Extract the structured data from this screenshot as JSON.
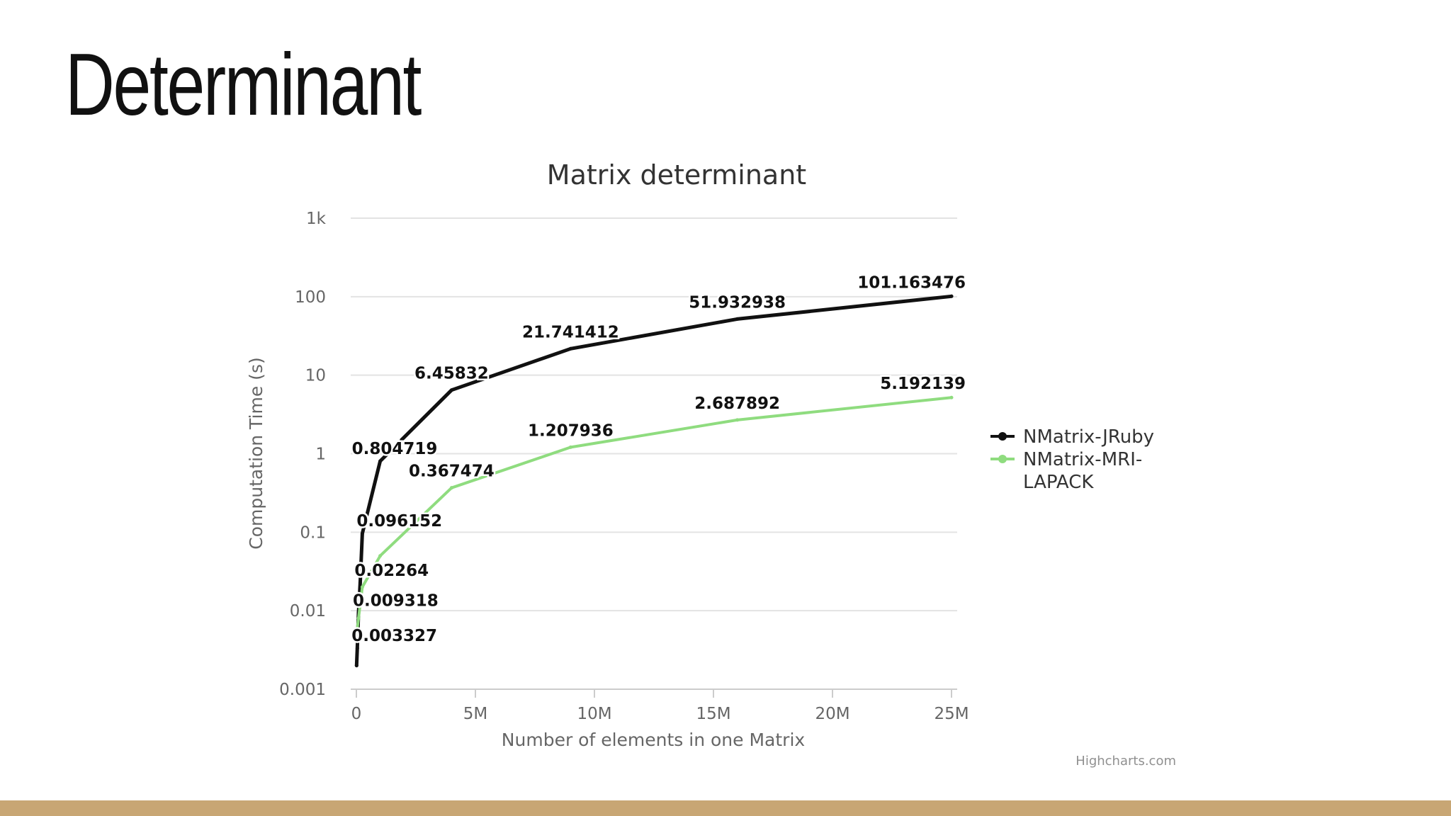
{
  "slide": {
    "title": "Determinant"
  },
  "colors": {
    "jruby": "#111111",
    "mri_lapack": "#8fdc7f",
    "accent_bar": "#c8a674",
    "grid": "#e3e3e3",
    "axis_text": "#666666"
  },
  "chart_data": {
    "type": "line",
    "title": "Matrix determinant",
    "xlabel": "Number of elements in one Matrix",
    "ylabel": "Computation Time (s)",
    "y_scale": "log",
    "xlim": [
      0,
      25000000
    ],
    "ylim": [
      0.001,
      1000
    ],
    "x_ticks": [
      {
        "value": 0,
        "label": "0"
      },
      {
        "value": 5000000,
        "label": "5M"
      },
      {
        "value": 10000000,
        "label": "10M"
      },
      {
        "value": 15000000,
        "label": "15M"
      },
      {
        "value": 20000000,
        "label": "20M"
      },
      {
        "value": 25000000,
        "label": "25M"
      }
    ],
    "y_ticks": [
      {
        "value": 0.001,
        "label": "0.001"
      },
      {
        "value": 0.01,
        "label": "0.01"
      },
      {
        "value": 0.1,
        "label": "0.1"
      },
      {
        "value": 1,
        "label": "1"
      },
      {
        "value": 10,
        "label": "10"
      },
      {
        "value": 100,
        "label": "100"
      },
      {
        "value": 1000,
        "label": "1k"
      }
    ],
    "grid": true,
    "legend_position": "right",
    "credits": "Highcharts.com",
    "series": [
      {
        "name": "NMatrix-JRuby",
        "color": "#111111",
        "points": [
          {
            "x": 10000,
            "y": 0.002,
            "label": ""
          },
          {
            "x": 40000,
            "y": 0.003327,
            "label": "0.003327"
          },
          {
            "x": 90000,
            "y": 0.009318,
            "label": "0.009318"
          },
          {
            "x": 160000,
            "y": 0.02264,
            "label": "0.02264"
          },
          {
            "x": 250000,
            "y": 0.096152,
            "label": "0.096152"
          },
          {
            "x": 1000000,
            "y": 0.804719,
            "label": "0.804719"
          },
          {
            "x": 4000000,
            "y": 6.45832,
            "label": "6.45832"
          },
          {
            "x": 9000000,
            "y": 21.741412,
            "label": "21.741412"
          },
          {
            "x": 16000000,
            "y": 51.932938,
            "label": "51.932938"
          },
          {
            "x": 25000000,
            "y": 101.163476,
            "label": "101.163476"
          }
        ]
      },
      {
        "name": "NMatrix-MRI-LAPACK",
        "color": "#8fdc7f",
        "points": [
          {
            "x": 10000,
            "y": 0.005,
            "label": ""
          },
          {
            "x": 90000,
            "y": 0.008,
            "label": ""
          },
          {
            "x": 250000,
            "y": 0.02,
            "label": ""
          },
          {
            "x": 1000000,
            "y": 0.05,
            "label": ""
          },
          {
            "x": 4000000,
            "y": 0.367474,
            "label": "0.367474"
          },
          {
            "x": 9000000,
            "y": 1.207936,
            "label": "1.207936"
          },
          {
            "x": 16000000,
            "y": 2.687892,
            "label": "2.687892"
          },
          {
            "x": 25000000,
            "y": 5.192139,
            "label": "5.192139"
          }
        ]
      }
    ]
  }
}
